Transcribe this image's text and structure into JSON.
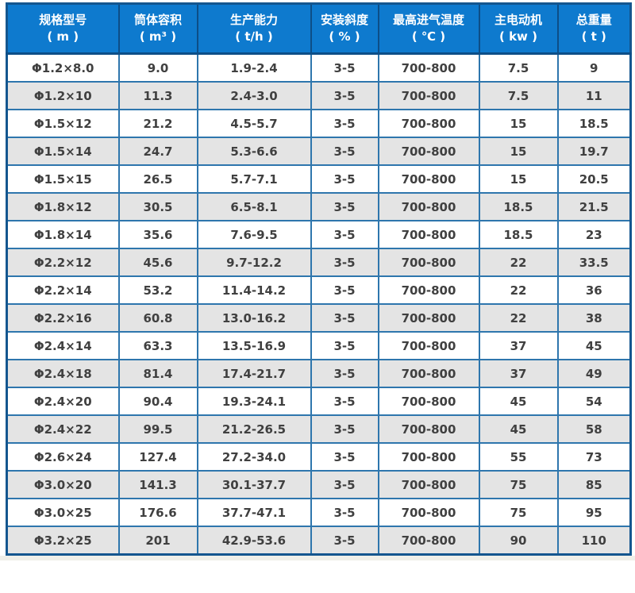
{
  "table": {
    "columns": [
      {
        "label": "规格型号",
        "unit": "( m )"
      },
      {
        "label": "筒体容积",
        "unit": "( m³ )"
      },
      {
        "label": "生产能力",
        "unit": "( t/h )"
      },
      {
        "label": "安装斜度",
        "unit": "( % )"
      },
      {
        "label": "最高进气温度",
        "unit": "( ℃ )"
      },
      {
        "label": "主电动机",
        "unit": "( kw )"
      },
      {
        "label": "总重量",
        "unit": "( t )"
      }
    ],
    "rows": [
      [
        "Φ1.2×8.0",
        "9.0",
        "1.9-2.4",
        "3-5",
        "700-800",
        "7.5",
        "9"
      ],
      [
        "Φ1.2×10",
        "11.3",
        "2.4-3.0",
        "3-5",
        "700-800",
        "7.5",
        "11"
      ],
      [
        "Φ1.5×12",
        "21.2",
        "4.5-5.7",
        "3-5",
        "700-800",
        "15",
        "18.5"
      ],
      [
        "Φ1.5×14",
        "24.7",
        "5.3-6.6",
        "3-5",
        "700-800",
        "15",
        "19.7"
      ],
      [
        "Φ1.5×15",
        "26.5",
        "5.7-7.1",
        "3-5",
        "700-800",
        "15",
        "20.5"
      ],
      [
        "Φ1.8×12",
        "30.5",
        "6.5-8.1",
        "3-5",
        "700-800",
        "18.5",
        "21.5"
      ],
      [
        "Φ1.8×14",
        "35.6",
        "7.6-9.5",
        "3-5",
        "700-800",
        "18.5",
        "23"
      ],
      [
        "Φ2.2×12",
        "45.6",
        "9.7-12.2",
        "3-5",
        "700-800",
        "22",
        "33.5"
      ],
      [
        "Φ2.2×14",
        "53.2",
        "11.4-14.2",
        "3-5",
        "700-800",
        "22",
        "36"
      ],
      [
        "Φ2.2×16",
        "60.8",
        "13.0-16.2",
        "3-5",
        "700-800",
        "22",
        "38"
      ],
      [
        "Φ2.4×14",
        "63.3",
        "13.5-16.9",
        "3-5",
        "700-800",
        "37",
        "45"
      ],
      [
        "Φ2.4×18",
        "81.4",
        "17.4-21.7",
        "3-5",
        "700-800",
        "37",
        "49"
      ],
      [
        "Φ2.4×20",
        "90.4",
        "19.3-24.1",
        "3-5",
        "700-800",
        "45",
        "54"
      ],
      [
        "Φ2.4×22",
        "99.5",
        "21.2-26.5",
        "3-5",
        "700-800",
        "45",
        "58"
      ],
      [
        "Φ2.6×24",
        "127.4",
        "27.2-34.0",
        "3-5",
        "700-800",
        "55",
        "73"
      ],
      [
        "Φ3.0×20",
        "141.3",
        "30.1-37.7",
        "3-5",
        "700-800",
        "75",
        "85"
      ],
      [
        "Φ3.0×25",
        "176.6",
        "37.7-47.1",
        "3-5",
        "700-800",
        "75",
        "95"
      ],
      [
        "Φ3.2×25",
        "201",
        "42.9-53.6",
        "3-5",
        "700-800",
        "90",
        "110"
      ]
    ]
  },
  "colors": {
    "header_bg": "#0e7ace",
    "header_divider": "#0d4e87",
    "outer_border": "#14568f",
    "cell_border": "#2e76ad",
    "alt_row_bg": "#e4e4e4",
    "body_text": "#404040",
    "header_text": "#ffffff"
  }
}
